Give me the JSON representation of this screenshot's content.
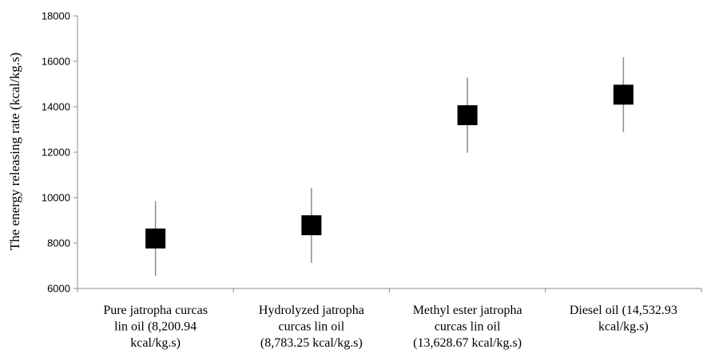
{
  "chart_data": {
    "type": "scatter",
    "ylabel": "The energy releasing rate (kcal/kg.s)",
    "xlabel": "",
    "ylim": [
      6000,
      18000
    ],
    "yticks": [
      6000,
      8000,
      10000,
      12000,
      14000,
      16000,
      18000
    ],
    "grid": false,
    "marker": "square",
    "marker_color": "#000000",
    "categories": [
      [
        "Pure jatropha curcas",
        "lin oil  (8,200.94",
        "kcal/kg.s)"
      ],
      [
        "Hydrolyzed jatropha",
        "curcas lin oil",
        "(8,783.25 kcal/kg.s)"
      ],
      [
        "Methyl ester jatropha",
        "curcas lin oil",
        "(13,628.67 kcal/kg.s)"
      ],
      [
        "Diesel oil (14,532.93",
        "kcal/kg.s)"
      ]
    ],
    "values": [
      8200.94,
      8783.25,
      13628.67,
      14532.93
    ],
    "error_low": [
      6550,
      7130,
      11970,
      12880
    ],
    "error_high": [
      9850,
      10430,
      15280,
      16180
    ]
  }
}
